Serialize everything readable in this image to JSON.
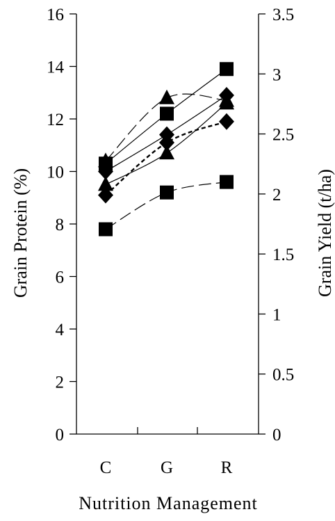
{
  "chart_data": {
    "type": "line",
    "title": "",
    "xlabel": "Nutrition Management",
    "ylabel_left": "Grain Protein (%)",
    "ylabel_right": "Grain Yield (t/ha)",
    "categories": [
      "C",
      "G",
      "R"
    ],
    "ylim_left": [
      0,
      16
    ],
    "ylim_right": [
      0,
      3.5
    ],
    "yticks_left": [
      "0",
      "2",
      "4",
      "6",
      "8",
      "10",
      "12",
      "14",
      "16"
    ],
    "yticks_right": [
      "0",
      "0.5",
      "1",
      "1.5",
      "2",
      "2.5",
      "3",
      "3.5"
    ],
    "grid": false,
    "legend": "none",
    "series": [
      {
        "marker": "square",
        "line": "long-dash",
        "axis": "left",
        "values": [
          7.8,
          9.2,
          9.6
        ]
      },
      {
        "marker": "square",
        "line": "solid",
        "axis": "left",
        "values": [
          10.3,
          12.2,
          13.9
        ]
      },
      {
        "marker": "diamond",
        "line": "solid",
        "axis": "left",
        "values": [
          10.0,
          11.4,
          12.9
        ]
      },
      {
        "marker": "diamond",
        "line": "short-dash",
        "axis": "left",
        "values": [
          9.1,
          11.1,
          11.9
        ]
      },
      {
        "marker": "triangle",
        "line": "solid",
        "axis": "left",
        "values": [
          9.5,
          10.7,
          12.6
        ]
      },
      {
        "marker": "triangle",
        "line": "long-dash",
        "axis": "left",
        "values": [
          10.4,
          12.8,
          12.7
        ]
      }
    ]
  }
}
